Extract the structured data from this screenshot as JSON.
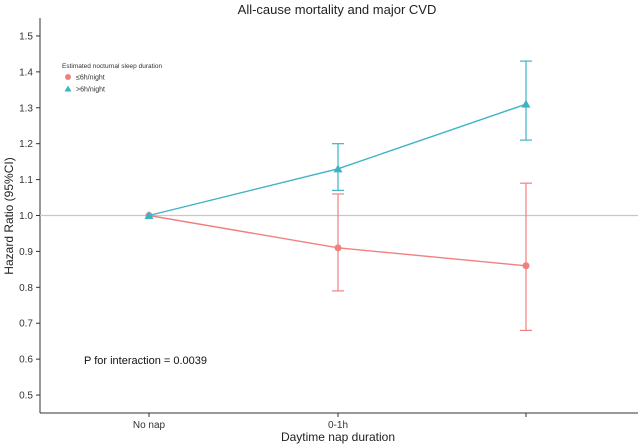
{
  "chart_data": {
    "type": "line",
    "title": "All-cause mortality and major CVD",
    "xlabel": "Daytime nap duration",
    "ylabel": "Hazard Ratio (95%CI)",
    "categories": [
      "No nap",
      "0-1h",
      ""
    ],
    "ylim": [
      0.45,
      1.55
    ],
    "yticks": [
      "0.5",
      "0.6",
      "0.7",
      "0.8",
      "0.9",
      "1.0",
      "1.1",
      "1.2",
      "1.3",
      "1.4",
      "1.5"
    ],
    "reference_line": 1.0,
    "legend": {
      "title": "Estimated nocturnal sleep duration",
      "position": "top-left"
    },
    "series": [
      {
        "name": "≤6h/night",
        "color": "#f08080",
        "marker": "circle",
        "values": [
          1.0,
          0.91,
          0.86
        ],
        "lower": [
          1.0,
          0.79,
          0.68
        ],
        "upper": [
          1.0,
          1.06,
          1.09
        ]
      },
      {
        "name": ">6h/night",
        "color": "#3cb4c6",
        "marker": "triangle",
        "values": [
          1.0,
          1.13,
          1.31
        ],
        "lower": [
          1.0,
          1.07,
          1.21
        ],
        "upper": [
          1.0,
          1.2,
          1.43
        ]
      }
    ],
    "annotation": "P for interaction = 0.0039"
  }
}
